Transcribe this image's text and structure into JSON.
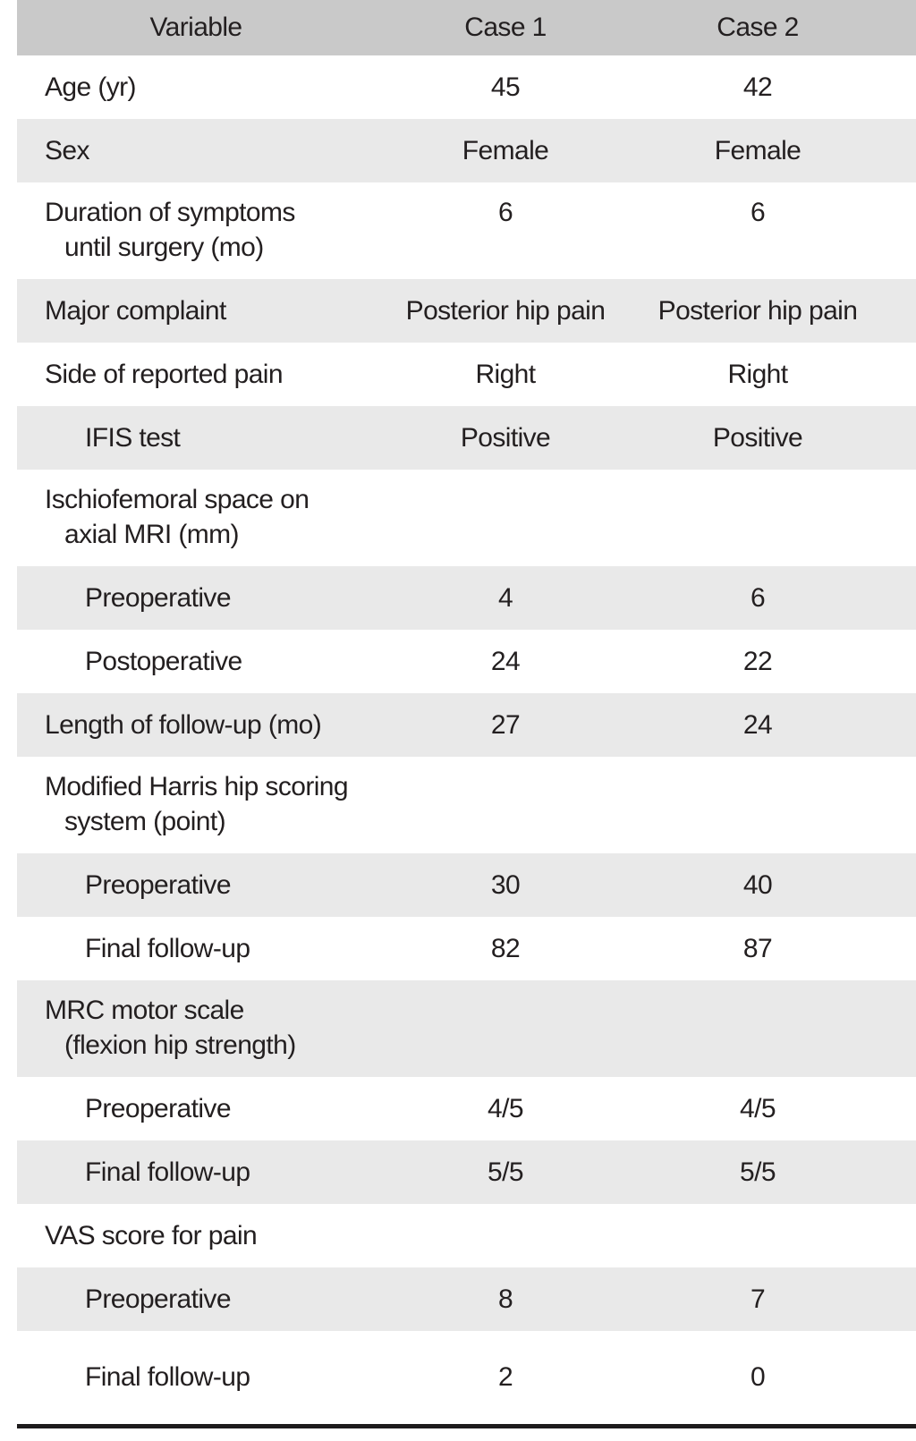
{
  "table": {
    "columns": [
      {
        "label": "Variable"
      },
      {
        "label": "Case 1"
      },
      {
        "label": "Case 2"
      }
    ],
    "rows": [
      {
        "label": "Age (yr)",
        "indent": 0,
        "case1": "45",
        "case2": "42"
      },
      {
        "label": "Sex",
        "indent": 0,
        "case1": "Female",
        "case2": "Female"
      },
      {
        "label": "Duration of symptoms",
        "label2": "until surgery (mo)",
        "indent": 0,
        "case1": "6",
        "case2": "6",
        "double": true
      },
      {
        "label": "Major complaint",
        "indent": 0,
        "case1": "Posterior hip pain",
        "case2": "Posterior hip pain"
      },
      {
        "label": "Side of reported pain",
        "indent": 0,
        "case1": "Right",
        "case2": "Right"
      },
      {
        "label": "IFIS test",
        "indent": 1,
        "case1": "Positive",
        "case2": "Positive"
      },
      {
        "label": "Ischiofemoral space on",
        "label2": "axial MRI (mm)",
        "indent": 0,
        "case1": "",
        "case2": "",
        "double": true
      },
      {
        "label": "Preoperative",
        "indent": 1,
        "case1": "4",
        "case2": "6"
      },
      {
        "label": "Postoperative",
        "indent": 1,
        "case1": "24",
        "case2": "22"
      },
      {
        "label": "Length of follow-up (mo)",
        "indent": 0,
        "case1": "27",
        "case2": "24"
      },
      {
        "label": "Modified Harris hip scoring",
        "label2": "system (point)",
        "indent": 0,
        "case1": "",
        "case2": "",
        "double": true
      },
      {
        "label": "Preoperative",
        "indent": 1,
        "case1": "30",
        "case2": "40"
      },
      {
        "label": "Final follow-up",
        "indent": 1,
        "case1": "82",
        "case2": "87"
      },
      {
        "label": "MRC motor scale",
        "label2": "(flexion hip strength)",
        "indent": 0,
        "case1": "",
        "case2": "",
        "double": true
      },
      {
        "label": "Preoperative",
        "indent": 1,
        "case1": "4/5",
        "case2": "4/5"
      },
      {
        "label": "Final follow-up",
        "indent": 1,
        "case1": "5/5",
        "case2": "5/5"
      },
      {
        "label": "VAS score for pain",
        "indent": 0,
        "case1": "",
        "case2": ""
      },
      {
        "label": "Preoperative",
        "indent": 1,
        "case1": "8",
        "case2": "7"
      },
      {
        "label": "Final follow-up",
        "indent": 1,
        "case1": "2",
        "case2": "0",
        "last": true
      }
    ]
  },
  "colors": {
    "header_bg": "#c9c9c9",
    "stripe_bg": "#e9e9e9",
    "text": "#231f20",
    "bottom_border": "#1d1b1c"
  }
}
